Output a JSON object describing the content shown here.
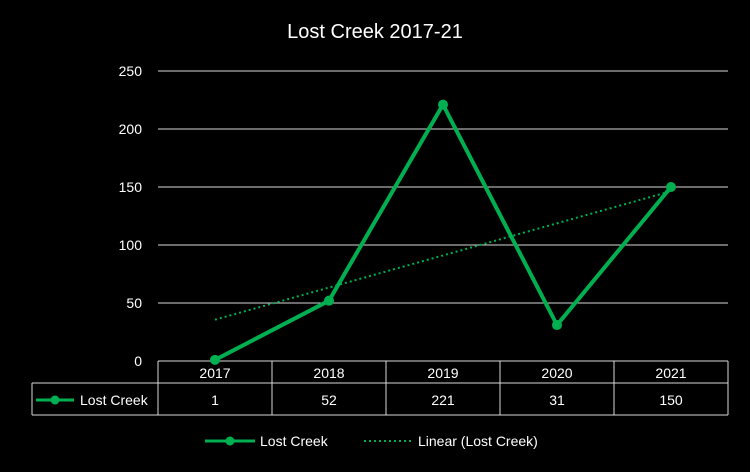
{
  "chart_data": {
    "type": "line",
    "title": "Lost Creek 2017-21",
    "categories": [
      "2017",
      "2018",
      "2019",
      "2020",
      "2021"
    ],
    "series": [
      {
        "name": "Lost Creek",
        "values": [
          1,
          52,
          221,
          31,
          150
        ],
        "color": "#00b050"
      }
    ],
    "trendline": {
      "name": "Linear (Lost Creek)",
      "type": "linear",
      "color": "#00b050"
    },
    "ylim": [
      0,
      250
    ],
    "yticks": [
      0,
      50,
      100,
      150,
      200,
      250
    ],
    "grid": true,
    "data_table": true,
    "legend": "bottom"
  }
}
